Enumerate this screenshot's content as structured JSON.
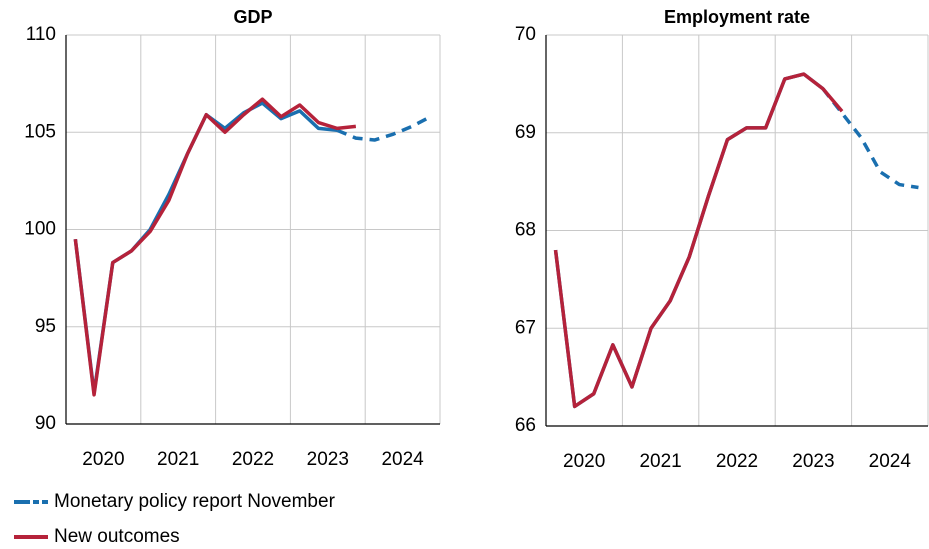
{
  "chart_data": [
    {
      "type": "line",
      "title": "GDP",
      "categories": [
        null,
        "2020",
        null,
        null,
        null,
        "2021",
        null,
        null,
        null,
        "2022",
        null,
        null,
        null,
        "2023",
        null,
        null,
        null,
        "2024",
        null,
        null
      ],
      "ylim": [
        90,
        110
      ],
      "yticks": [
        90,
        95,
        100,
        105,
        110
      ],
      "grid": true,
      "series": [
        {
          "name": "Monetary policy report November",
          "color": "#1a6faf",
          "values": [
            99.5,
            91.6,
            98.3,
            98.9,
            100.0,
            101.8,
            103.9,
            105.9,
            105.2,
            106.0,
            106.5,
            105.7,
            106.1,
            105.2,
            105.1,
            null,
            null,
            null,
            null,
            null
          ]
        },
        {
          "color": "#1a6faf",
          "dashed": true,
          "values": [
            null,
            null,
            null,
            null,
            null,
            null,
            null,
            null,
            null,
            null,
            null,
            null,
            null,
            null,
            105.1,
            104.7,
            104.6,
            104.9,
            105.3,
            105.8
          ]
        },
        {
          "name": "New outcomes",
          "color": "#b5223a",
          "values": [
            99.5,
            91.5,
            98.3,
            98.9,
            99.9,
            101.5,
            103.9,
            105.9,
            105.0,
            105.9,
            106.7,
            105.8,
            106.4,
            105.5,
            105.2,
            105.3,
            null,
            null,
            null,
            null
          ]
        }
      ]
    },
    {
      "type": "line",
      "title": "Employment rate",
      "categories": [
        null,
        "2020",
        null,
        null,
        null,
        "2021",
        null,
        null,
        null,
        "2022",
        null,
        null,
        null,
        "2023",
        null,
        null,
        null,
        "2024",
        null,
        null
      ],
      "ylim": [
        66,
        70
      ],
      "yticks": [
        66,
        67,
        68,
        69,
        70
      ],
      "grid": true,
      "series": [
        {
          "color": "#1a6faf",
          "values": [
            67.8,
            66.2,
            66.33,
            66.83,
            66.4,
            67.0,
            67.28,
            67.73,
            68.35,
            68.93,
            69.05,
            69.05,
            69.55,
            69.6,
            69.45,
            null,
            null,
            null,
            null,
            null
          ]
        },
        {
          "color": "#1a6faf",
          "dashed": true,
          "values": [
            null,
            null,
            null,
            null,
            null,
            null,
            null,
            null,
            null,
            null,
            null,
            null,
            null,
            null,
            69.45,
            69.2,
            68.95,
            68.6,
            68.47,
            68.44
          ]
        },
        {
          "color": "#b5223a",
          "values": [
            67.8,
            66.2,
            66.33,
            66.83,
            66.4,
            67.0,
            67.28,
            67.73,
            68.35,
            68.93,
            69.05,
            69.05,
            69.55,
            69.6,
            69.45,
            69.22,
            null,
            null,
            null,
            null
          ]
        }
      ]
    }
  ]
}
